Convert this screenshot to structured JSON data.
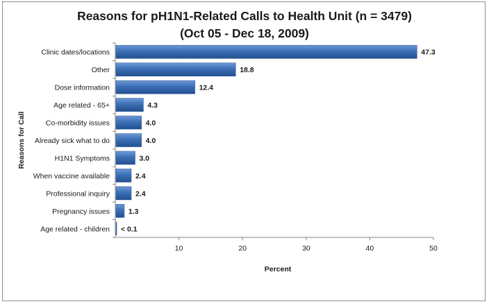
{
  "chart_data": {
    "type": "bar",
    "orientation": "horizontal",
    "title": "Reasons for pH1N1-Related Calls to Health Unit (n = 3479)",
    "subtitle": "(Oct 05 - Dec 18, 2009)",
    "xlabel": "Percent",
    "ylabel": "Reasons for Call",
    "xlim": [
      0,
      50
    ],
    "xticks": [
      10,
      20,
      30,
      40,
      50
    ],
    "grid": false,
    "legend": "none",
    "bar_color": "#3b6fb6",
    "categories": [
      "Clinic dates/locations",
      "Other",
      "Dose information",
      "Age related - 65+",
      "Co-morbidity issues",
      "Already sick what to do",
      "H1N1 Symptoms",
      "When vaccine available",
      "Professional inquiry",
      "Pregnancy issues",
      "Age related - children"
    ],
    "values": [
      47.3,
      18.8,
      12.4,
      4.3,
      4.0,
      4.0,
      3.0,
      2.4,
      2.4,
      1.3,
      0.05
    ],
    "data_labels": [
      "47.3",
      "18.8",
      "12.4",
      "4.3",
      "4.0",
      "4.0",
      "3.0",
      "2.4",
      "2.4",
      "1.3",
      "< 0.1"
    ]
  }
}
